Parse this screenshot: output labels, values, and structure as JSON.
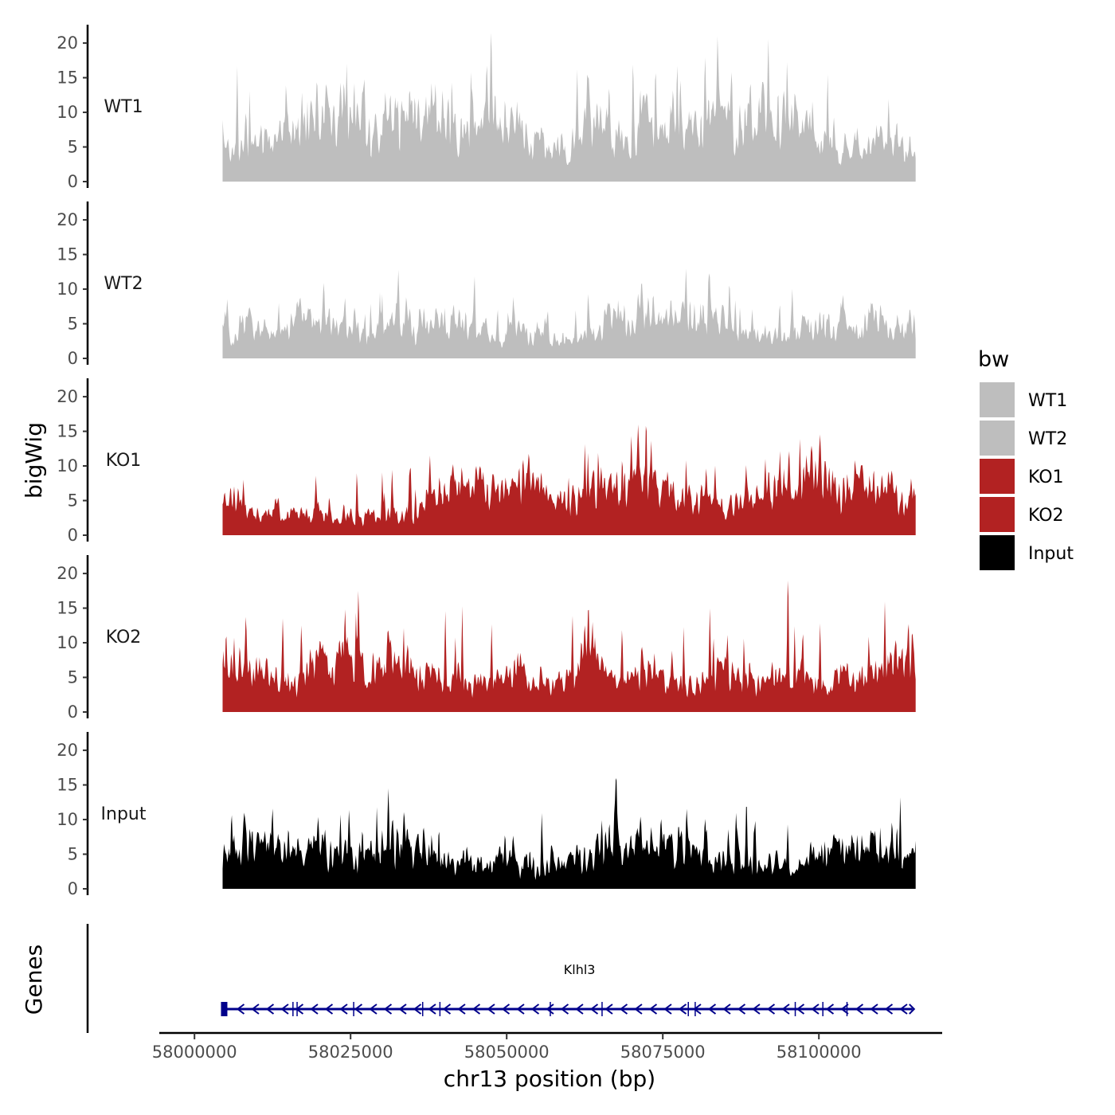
{
  "chart_data": {
    "type": "area",
    "chromosome": "chr13",
    "xlabel": "chr13 position (bp)",
    "ylabel": "bigWig",
    "genes_label": "Genes",
    "xlim": [
      57995000,
      58120000
    ],
    "data_range": [
      58004500,
      58115500
    ],
    "ylim": [
      0,
      23
    ],
    "yticks": [
      0,
      5,
      10,
      15,
      20
    ],
    "yticks_labels": [
      "0",
      "5",
      "10",
      "15",
      "20"
    ],
    "xticks": [
      58000000,
      58025000,
      58050000,
      58075000,
      58100000
    ],
    "xticks_labels": [
      "58000000",
      "58025000",
      "58050000",
      "58075000",
      "58100000"
    ],
    "tracks": [
      {
        "name": "WT1",
        "color": "#bebebe",
        "max": 21.5,
        "mean": 3.2
      },
      {
        "name": "WT2",
        "color": "#bebebe",
        "max": 13.0,
        "mean": 3.0
      },
      {
        "name": "KO1",
        "color": "#b22222",
        "max": 16.0,
        "mean": 4.0
      },
      {
        "name": "KO2",
        "color": "#b22222",
        "max": 19.0,
        "mean": 4.0
      },
      {
        "name": "Input",
        "color": "#000000",
        "max": 16.0,
        "mean": 4.5
      }
    ],
    "legend": {
      "title": "bw",
      "position": "right",
      "entries": [
        {
          "label": "WT1",
          "color": "#bebebe"
        },
        {
          "label": "WT2",
          "color": "#bebebe"
        },
        {
          "label": "KO1",
          "color": "#b22222"
        },
        {
          "label": "KO2",
          "color": "#b22222"
        },
        {
          "label": "Input",
          "color": "#000000"
        }
      ]
    },
    "genes": [
      {
        "name": "Klhl3",
        "start": 58004500,
        "end": 58115000,
        "strand": "-",
        "color": "#00008b"
      }
    ],
    "grid": false
  }
}
